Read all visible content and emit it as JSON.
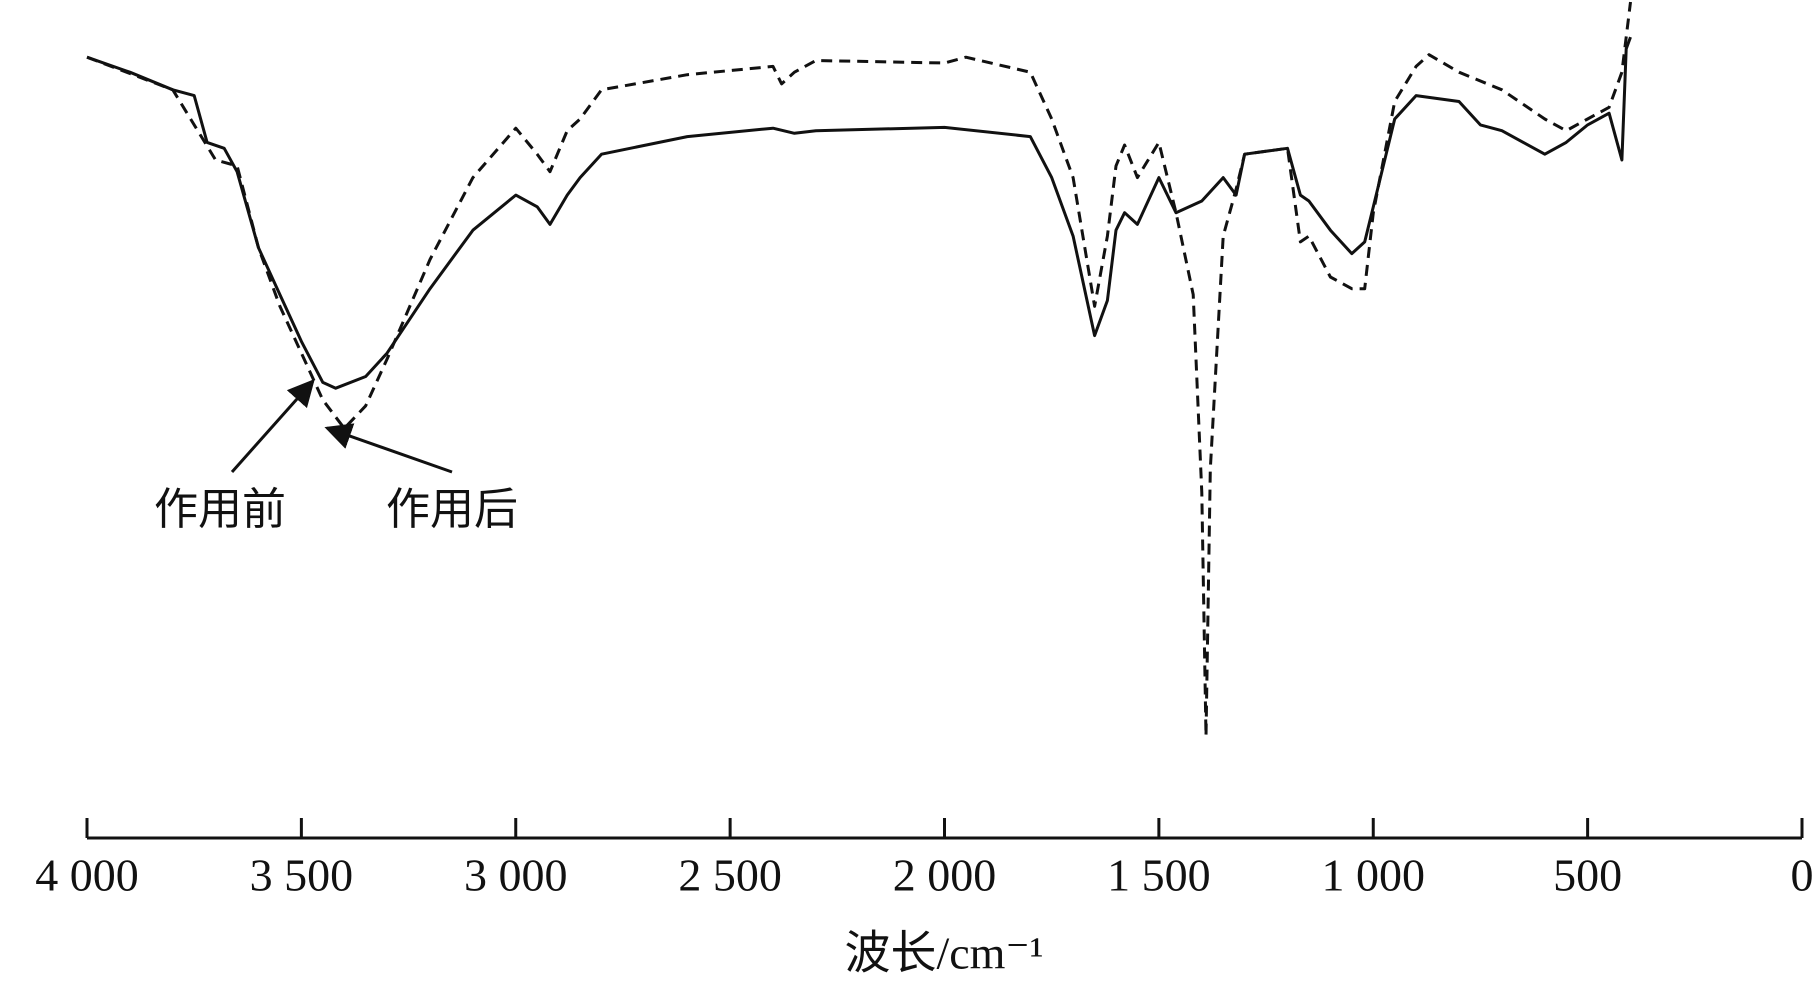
{
  "chart_data": {
    "type": "line",
    "x_label": "波长/cm⁻¹",
    "xlim": [
      4000,
      0
    ],
    "xticks": [
      {
        "value": 4000,
        "label": "4 000"
      },
      {
        "value": 3500,
        "label": "3 500"
      },
      {
        "value": 3000,
        "label": "3 000"
      },
      {
        "value": 2500,
        "label": "2 500"
      },
      {
        "value": 2000,
        "label": "2 000"
      },
      {
        "value": 1500,
        "label": "1 500"
      },
      {
        "value": 1000,
        "label": "1 000"
      },
      500,
      0
    ],
    "ylim": [
      0,
      100
    ],
    "series": [
      {
        "name": "作用前",
        "color": "#111111",
        "line_style": "solid",
        "x": [
          4000,
          3900,
          3800,
          3750,
          3720,
          3680,
          3650,
          3600,
          3550,
          3500,
          3450,
          3420,
          3350,
          3300,
          3200,
          3100,
          3000,
          2950,
          2920,
          2880,
          2850,
          2800,
          2600,
          2400,
          2350,
          2300,
          2000,
          1800,
          1750,
          1700,
          1650,
          1620,
          1600,
          1580,
          1550,
          1500,
          1460,
          1400,
          1350,
          1320,
          1300,
          1200,
          1170,
          1150,
          1100,
          1050,
          1020,
          1000,
          950,
          900,
          800,
          750,
          700,
          650,
          600,
          550,
          500,
          450,
          420,
          410,
          400
        ],
        "values": [
          93.4,
          91.6,
          89.5,
          88.8,
          83.2,
          82.5,
          79.7,
          70.6,
          65.0,
          59.4,
          54.5,
          53.8,
          55.2,
          58.0,
          65.7,
          72.7,
          76.9,
          75.5,
          73.4,
          76.9,
          79.0,
          81.8,
          83.9,
          84.9,
          84.3,
          84.6,
          85.0,
          83.9,
          79.0,
          72.0,
          60.1,
          64.3,
          72.7,
          74.8,
          73.4,
          79.0,
          74.8,
          76.2,
          79.0,
          76.9,
          81.8,
          82.5,
          76.9,
          76.2,
          72.7,
          69.9,
          71.3,
          75.5,
          86.0,
          88.8,
          88.1,
          85.3,
          84.6,
          83.2,
          81.8,
          83.2,
          85.3,
          86.7,
          81.1,
          94.4,
          95.8
        ]
      },
      {
        "name": "作用后",
        "color": "#111111",
        "line_style": "dashed",
        "x": [
          4000,
          3800,
          3700,
          3650,
          3600,
          3550,
          3500,
          3450,
          3400,
          3350,
          3300,
          3200,
          3100,
          3000,
          2950,
          2920,
          2880,
          2850,
          2800,
          2600,
          2400,
          2380,
          2350,
          2300,
          2000,
          1950,
          1800,
          1750,
          1700,
          1650,
          1620,
          1600,
          1580,
          1550,
          1500,
          1460,
          1420,
          1400,
          1390,
          1380,
          1350,
          1320,
          1300,
          1200,
          1170,
          1150,
          1100,
          1050,
          1020,
          1000,
          950,
          900,
          870,
          800,
          700,
          600,
          550,
          500,
          450,
          420,
          400
        ],
        "values": [
          93.4,
          89.5,
          81.1,
          80.4,
          70.6,
          63.6,
          58.0,
          52.4,
          49.0,
          51.7,
          57.3,
          69.2,
          79.0,
          84.9,
          81.8,
          79.7,
          84.6,
          86.0,
          89.5,
          91.3,
          92.3,
          90.2,
          91.6,
          93.0,
          92.7,
          93.4,
          91.6,
          86.0,
          79.0,
          63.6,
          72.0,
          80.4,
          82.9,
          79.0,
          83.2,
          74.8,
          65.0,
          41.3,
          12.2,
          44.1,
          72.0,
          77.6,
          81.8,
          82.5,
          71.3,
          72.0,
          67.1,
          65.7,
          65.7,
          74.8,
          88.1,
          92.3,
          93.7,
          91.6,
          89.5,
          86.0,
          84.6,
          86.0,
          87.4,
          91.6,
          100
        ]
      }
    ]
  }
}
